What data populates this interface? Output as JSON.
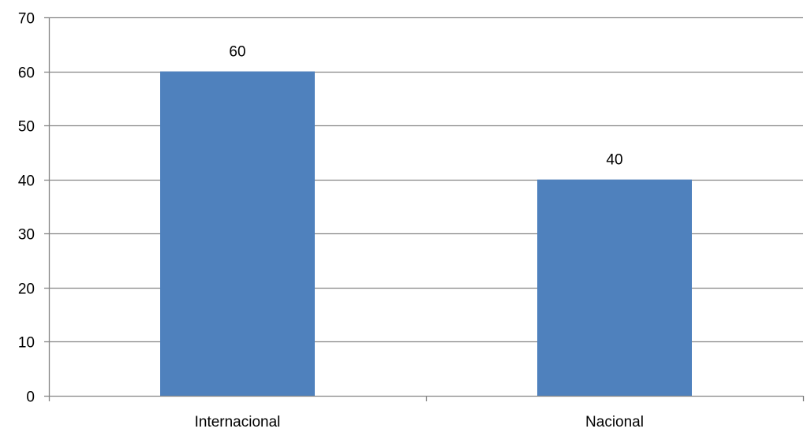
{
  "chart_data": {
    "type": "bar",
    "categories": [
      "Internacional",
      "Nacional"
    ],
    "series": [
      {
        "values": [
          60,
          40
        ]
      }
    ],
    "data_labels": [
      "60",
      "40"
    ],
    "title": "",
    "xlabel": "",
    "ylabel": "",
    "ylim": [
      0,
      70
    ],
    "yticks": [
      0,
      10,
      20,
      30,
      40,
      50,
      60,
      70
    ],
    "grid": true,
    "legend": "none",
    "colors": {
      "bar": "#4f81bd",
      "grid": "#868686",
      "axis": "#868686",
      "text": "#000000"
    }
  }
}
